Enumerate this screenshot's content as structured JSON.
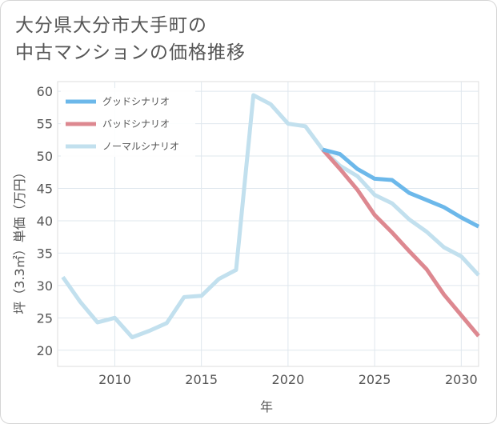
{
  "title_lines": [
    "大分県大分市大手町の",
    "中古マンションの価格推移"
  ],
  "chart_data": {
    "type": "line",
    "xlabel": "年",
    "ylabel": "坪（3.3㎡）単価（万円）",
    "xlim": [
      2006.7,
      2031
    ],
    "ylim": [
      17.5,
      61.5
    ],
    "xticks": [
      2010,
      2015,
      2020,
      2025,
      2030
    ],
    "yticks": [
      20,
      25,
      30,
      35,
      40,
      45,
      50,
      55,
      60
    ],
    "grid": true,
    "legend_position": "top-left",
    "series": [
      {
        "name": "グッドシナリオ",
        "color": "#6cb8ea",
        "points": [
          [
            2022,
            51
          ],
          [
            2023,
            50.3
          ],
          [
            2024,
            48
          ],
          [
            2025,
            46.5
          ],
          [
            2026,
            46.3
          ],
          [
            2027,
            44.3
          ],
          [
            2028,
            43.2
          ],
          [
            2029,
            42.1
          ],
          [
            2030,
            40.5
          ],
          [
            2031,
            39.1
          ]
        ]
      },
      {
        "name": "バッドシナリオ",
        "color": "#dd8890",
        "points": [
          [
            2022,
            51
          ],
          [
            2023,
            48
          ],
          [
            2024,
            44.8
          ],
          [
            2025,
            40.9
          ],
          [
            2026,
            38.2
          ],
          [
            2027,
            35.3
          ],
          [
            2028,
            32.5
          ],
          [
            2029,
            28.6
          ],
          [
            2030,
            25.4
          ],
          [
            2031,
            22.2
          ]
        ]
      },
      {
        "name": "ノーマルシナリオ",
        "color": "#c2e0ee",
        "points": [
          [
            2007,
            31.3
          ],
          [
            2008,
            27.5
          ],
          [
            2009,
            24.3
          ],
          [
            2010,
            25
          ],
          [
            2011,
            22
          ],
          [
            2012,
            23
          ],
          [
            2013,
            24.2
          ],
          [
            2014,
            28.2
          ],
          [
            2015,
            28.4
          ],
          [
            2016,
            31
          ],
          [
            2017,
            32.4
          ],
          [
            2018,
            59.4
          ],
          [
            2019,
            58
          ],
          [
            2020,
            55
          ],
          [
            2021,
            54.6
          ],
          [
            2022,
            51
          ],
          [
            2023,
            48.5
          ],
          [
            2024,
            46.9
          ],
          [
            2025,
            44
          ],
          [
            2026,
            42.7
          ],
          [
            2027,
            40.2
          ],
          [
            2028,
            38.3
          ],
          [
            2029,
            35.9
          ],
          [
            2030,
            34.5
          ],
          [
            2031,
            31.6
          ]
        ]
      }
    ]
  }
}
